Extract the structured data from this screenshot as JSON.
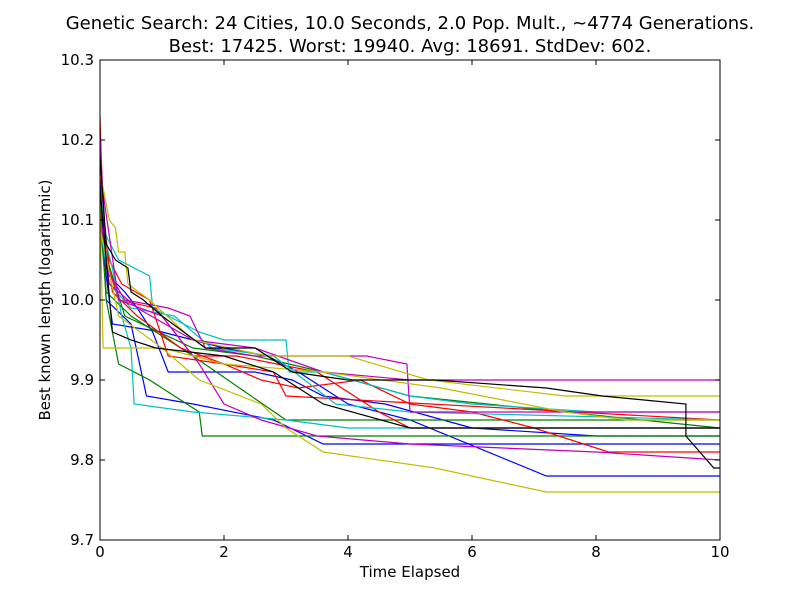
{
  "chart_data": {
    "type": "line",
    "title": "Genetic Search: 24 Cities, 10.0 Seconds, 2.0 Pop. Mult., ~4774 Generations.",
    "subtitle": "Best: 17425. Worst: 19940. Avg: 18691. StdDev: 602.",
    "xlabel": "Time Elapsed",
    "ylabel": "Best known length (logarithmic)",
    "xlim": [
      0,
      10
    ],
    "ylim": [
      9.7,
      10.3
    ],
    "x_ticks": [
      0,
      2,
      4,
      6,
      8,
      10
    ],
    "x_tick_labels": [
      "0",
      "2",
      "4",
      "6",
      "8",
      "10"
    ],
    "y_ticks": [
      9.7,
      9.8,
      9.9,
      10.0,
      10.1,
      10.2,
      10.3
    ],
    "y_tick_labels": [
      "9.7",
      "9.8",
      "9.9",
      "10.0",
      "10.1",
      "10.2",
      "10.3"
    ],
    "grid": false,
    "colors": {
      "blue": "#0000ff",
      "green": "#008000",
      "red": "#ff0000",
      "cyan": "#00bfbf",
      "magenta": "#bf00bf",
      "yellow": "#bfbf00",
      "black": "#000000"
    },
    "series": [
      {
        "color": "blue",
        "points": [
          [
            0,
            10.2
          ],
          [
            0.05,
            10.08
          ],
          [
            0.15,
            10.03
          ],
          [
            0.4,
            10.01
          ],
          [
            0.6,
            9.99
          ],
          [
            0.85,
            9.96
          ],
          [
            1.1,
            9.91
          ],
          [
            1.6,
            9.91
          ],
          [
            2.5,
            9.91
          ],
          [
            3.1,
            9.9
          ],
          [
            3.6,
            9.88
          ],
          [
            4.6,
            9.87
          ],
          [
            6,
            9.84
          ],
          [
            8,
            9.83
          ],
          [
            10,
            9.83
          ]
        ]
      },
      {
        "color": "blue",
        "points": [
          [
            0,
            10.15
          ],
          [
            0.1,
            10.0
          ],
          [
            0.5,
            9.97
          ],
          [
            0.75,
            9.88
          ],
          [
            1.5,
            9.87
          ],
          [
            2.8,
            9.85
          ],
          [
            3.6,
            9.82
          ],
          [
            5,
            9.82
          ],
          [
            10,
            9.82
          ]
        ]
      },
      {
        "color": "blue",
        "points": [
          [
            0,
            10.1
          ],
          [
            0.1,
            10.03
          ],
          [
            0.2,
            9.97
          ],
          [
            1,
            9.96
          ],
          [
            2,
            9.94
          ],
          [
            2.7,
            9.93
          ],
          [
            3.2,
            9.91
          ],
          [
            4,
            9.87
          ],
          [
            5,
            9.85
          ],
          [
            7.2,
            9.78
          ],
          [
            8,
            9.78
          ],
          [
            10,
            9.78
          ]
        ]
      },
      {
        "color": "green",
        "points": [
          [
            0,
            10.12
          ],
          [
            0.1,
            10.0
          ],
          [
            0.3,
            9.92
          ],
          [
            0.8,
            9.9
          ],
          [
            1.6,
            9.86
          ],
          [
            1.65,
            9.83
          ],
          [
            3,
            9.83
          ],
          [
            10,
            9.83
          ]
        ]
      },
      {
        "color": "green",
        "points": [
          [
            0,
            10.1
          ],
          [
            0.1,
            10.01
          ],
          [
            0.5,
            9.98
          ],
          [
            1.5,
            9.93
          ],
          [
            3.0,
            9.85
          ],
          [
            4,
            9.85
          ],
          [
            10,
            9.85
          ]
        ]
      },
      {
        "color": "green",
        "points": [
          [
            0,
            10.08
          ],
          [
            0.4,
            9.98
          ],
          [
            1.5,
            9.94
          ],
          [
            2.5,
            9.93
          ],
          [
            3.6,
            9.91
          ],
          [
            5,
            9.88
          ],
          [
            10,
            9.84
          ]
        ]
      },
      {
        "color": "red",
        "points": [
          [
            0,
            10.23
          ],
          [
            0.05,
            10.1
          ],
          [
            0.15,
            10.05
          ],
          [
            0.35,
            10.02
          ],
          [
            0.8,
            10.0
          ],
          [
            1.1,
            9.93
          ],
          [
            2,
            9.92
          ],
          [
            2.6,
            9.9
          ],
          [
            3.2,
            9.89
          ],
          [
            4.2,
            9.9
          ],
          [
            5,
            9.87
          ],
          [
            6,
            9.86
          ],
          [
            7,
            9.84
          ],
          [
            8.2,
            9.81
          ],
          [
            10,
            9.81
          ]
        ]
      },
      {
        "color": "red",
        "points": [
          [
            0,
            10.17
          ],
          [
            0.1,
            10.05
          ],
          [
            0.3,
            10.0
          ],
          [
            0.9,
            9.99
          ],
          [
            1.5,
            9.93
          ],
          [
            2.2,
            9.93
          ],
          [
            3.5,
            9.91
          ],
          [
            4.5,
            9.86
          ],
          [
            5,
            9.84
          ],
          [
            10,
            9.84
          ]
        ]
      },
      {
        "color": "red",
        "points": [
          [
            0,
            10.13
          ],
          [
            0.2,
            10.01
          ],
          [
            0.6,
            9.98
          ],
          [
            1.3,
            9.94
          ],
          [
            2,
            9.92
          ],
          [
            2.8,
            9.91
          ],
          [
            3,
            9.88
          ],
          [
            10,
            9.85
          ]
        ]
      },
      {
        "color": "cyan",
        "points": [
          [
            0,
            10.14
          ],
          [
            0.1,
            10.08
          ],
          [
            0.3,
            10.05
          ],
          [
            0.8,
            10.03
          ],
          [
            0.85,
            9.99
          ],
          [
            1.6,
            9.96
          ],
          [
            2,
            9.95
          ],
          [
            3,
            9.95
          ],
          [
            3.05,
            9.91
          ],
          [
            3.6,
            9.91
          ],
          [
            5,
            9.88
          ],
          [
            6,
            9.87
          ],
          [
            8,
            9.86
          ],
          [
            10,
            9.86
          ]
        ]
      },
      {
        "color": "cyan",
        "points": [
          [
            0,
            10.1
          ],
          [
            0.2,
            10.04
          ],
          [
            0.35,
            9.98
          ],
          [
            0.5,
            9.94
          ],
          [
            0.55,
            9.87
          ],
          [
            1.5,
            9.86
          ],
          [
            3,
            9.85
          ],
          [
            4,
            9.84
          ],
          [
            10,
            9.84
          ]
        ]
      },
      {
        "color": "cyan",
        "points": [
          [
            0,
            10.09
          ],
          [
            0.15,
            10.02
          ],
          [
            0.5,
            9.99
          ],
          [
            1.2,
            9.98
          ],
          [
            1.8,
            9.94
          ],
          [
            2.8,
            9.93
          ],
          [
            3.8,
            9.87
          ],
          [
            5,
            9.86
          ],
          [
            10,
            9.85
          ]
        ]
      },
      {
        "color": "magenta",
        "points": [
          [
            0,
            10.21
          ],
          [
            0.1,
            10.04
          ],
          [
            0.4,
            10.0
          ],
          [
            1.1,
            9.99
          ],
          [
            1.45,
            9.98
          ],
          [
            1.7,
            9.94
          ],
          [
            2.5,
            9.93
          ],
          [
            4.3,
            9.93
          ],
          [
            4.95,
            9.92
          ],
          [
            5,
            9.86
          ],
          [
            6,
            9.86
          ],
          [
            10,
            9.86
          ]
        ]
      },
      {
        "color": "magenta",
        "points": [
          [
            0,
            10.16
          ],
          [
            0.3,
            10.0
          ],
          [
            1.0,
            9.98
          ],
          [
            1.6,
            9.92
          ],
          [
            2,
            9.87
          ],
          [
            2.6,
            9.85
          ],
          [
            3.5,
            9.83
          ],
          [
            5,
            9.82
          ],
          [
            8,
            9.81
          ],
          [
            10,
            9.8
          ]
        ]
      },
      {
        "color": "magenta",
        "points": [
          [
            0,
            10.11
          ],
          [
            0.15,
            10.02
          ],
          [
            0.6,
            9.99
          ],
          [
            1.5,
            9.95
          ],
          [
            2.5,
            9.94
          ],
          [
            3.6,
            9.91
          ],
          [
            5,
            9.9
          ],
          [
            10,
            9.9
          ]
        ]
      },
      {
        "color": "yellow",
        "points": [
          [
            0,
            10.16
          ],
          [
            0.15,
            10.1
          ],
          [
            0.25,
            10.09
          ],
          [
            0.3,
            10.06
          ],
          [
            0.4,
            10.06
          ],
          [
            0.45,
            10.02
          ],
          [
            0.8,
            10.0
          ],
          [
            1.5,
            9.95
          ],
          [
            2.7,
            9.93
          ],
          [
            4.0,
            9.93
          ],
          [
            5.3,
            9.9
          ],
          [
            7.5,
            9.88
          ],
          [
            10,
            9.88
          ]
        ]
      },
      {
        "color": "yellow",
        "points": [
          [
            0,
            10.12
          ],
          [
            0.05,
            9.94
          ],
          [
            1.0,
            9.94
          ],
          [
            1.6,
            9.9
          ],
          [
            2.6,
            9.87
          ],
          [
            3.0,
            9.84
          ],
          [
            3.6,
            9.81
          ],
          [
            5.4,
            9.79
          ],
          [
            7.2,
            9.76
          ],
          [
            8,
            9.76
          ],
          [
            10,
            9.76
          ]
        ]
      },
      {
        "color": "yellow",
        "points": [
          [
            0,
            10.09
          ],
          [
            0.3,
            9.98
          ],
          [
            1.0,
            9.94
          ],
          [
            2.0,
            9.92
          ],
          [
            3.6,
            9.91
          ],
          [
            5.5,
            9.89
          ],
          [
            7.5,
            9.86
          ],
          [
            8.5,
            9.85
          ],
          [
            10,
            9.85
          ]
        ]
      },
      {
        "color": "black",
        "points": [
          [
            0,
            10.18
          ],
          [
            0.1,
            10.07
          ],
          [
            0.25,
            10.05
          ],
          [
            0.45,
            10.04
          ],
          [
            0.5,
            10.01
          ],
          [
            0.7,
            10.0
          ],
          [
            1.0,
            9.98
          ],
          [
            1.7,
            9.94
          ],
          [
            2.5,
            9.94
          ],
          [
            3.1,
            9.91
          ],
          [
            4.0,
            9.9
          ],
          [
            5.4,
            9.9
          ],
          [
            7.2,
            9.89
          ],
          [
            8.1,
            9.88
          ],
          [
            9.45,
            9.87
          ],
          [
            9.45,
            9.83
          ],
          [
            9.9,
            9.79
          ],
          [
            10,
            9.79
          ]
        ]
      },
      {
        "color": "black",
        "points": [
          [
            0,
            10.14
          ],
          [
            0.2,
            9.96
          ],
          [
            0.5,
            9.95
          ],
          [
            0.9,
            9.94
          ],
          [
            2.0,
            9.93
          ],
          [
            2.8,
            9.91
          ],
          [
            3.6,
            9.87
          ],
          [
            5,
            9.84
          ],
          [
            10,
            9.84
          ]
        ]
      }
    ]
  }
}
